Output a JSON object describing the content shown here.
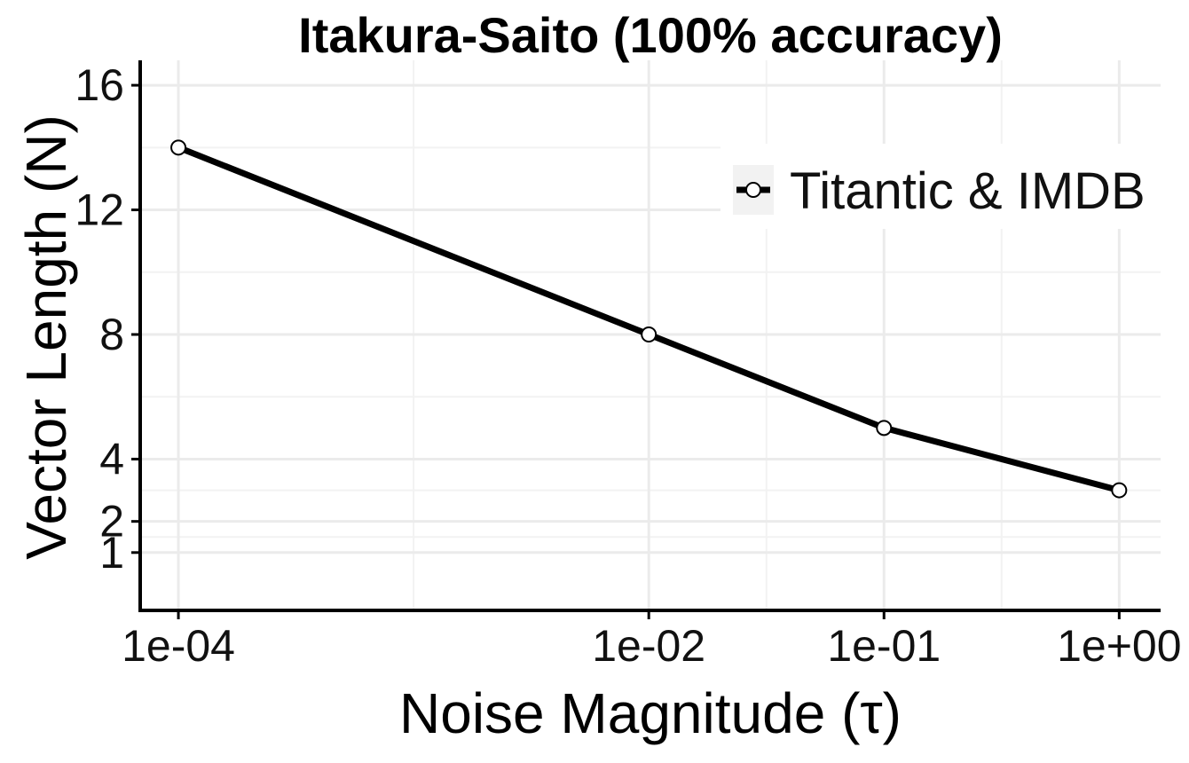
{
  "chart_data": {
    "type": "line",
    "title": "Itakura-Saito (100% accuracy)",
    "xlabel": "Noise Magnitude (τ)",
    "ylabel": "Vector Length (N)",
    "x_scale": "log10",
    "x_ticks": [
      {
        "value": 0.0001,
        "label": "1e-04"
      },
      {
        "value": 0.01,
        "label": "1e-02"
      },
      {
        "value": 0.1,
        "label": "1e-01"
      },
      {
        "value": 1,
        "label": "1e+00"
      }
    ],
    "y_ticks": [
      {
        "value": 1,
        "label": "1"
      },
      {
        "value": 2,
        "label": "2"
      },
      {
        "value": 4,
        "label": "4"
      },
      {
        "value": 8,
        "label": "8"
      },
      {
        "value": 12,
        "label": "12"
      },
      {
        "value": 16,
        "label": "16"
      }
    ],
    "xlim": [
      7e-05,
      1.5
    ],
    "ylim": [
      -0.8,
      16.8
    ],
    "grid": true,
    "legend_position": "top-right",
    "series": [
      {
        "name": "Titantic & IMDB",
        "color": "#000000",
        "marker": "open-circle",
        "x": [
          0.0001,
          0.01,
          0.1,
          1
        ],
        "y": [
          14,
          8,
          5,
          3
        ]
      }
    ]
  }
}
